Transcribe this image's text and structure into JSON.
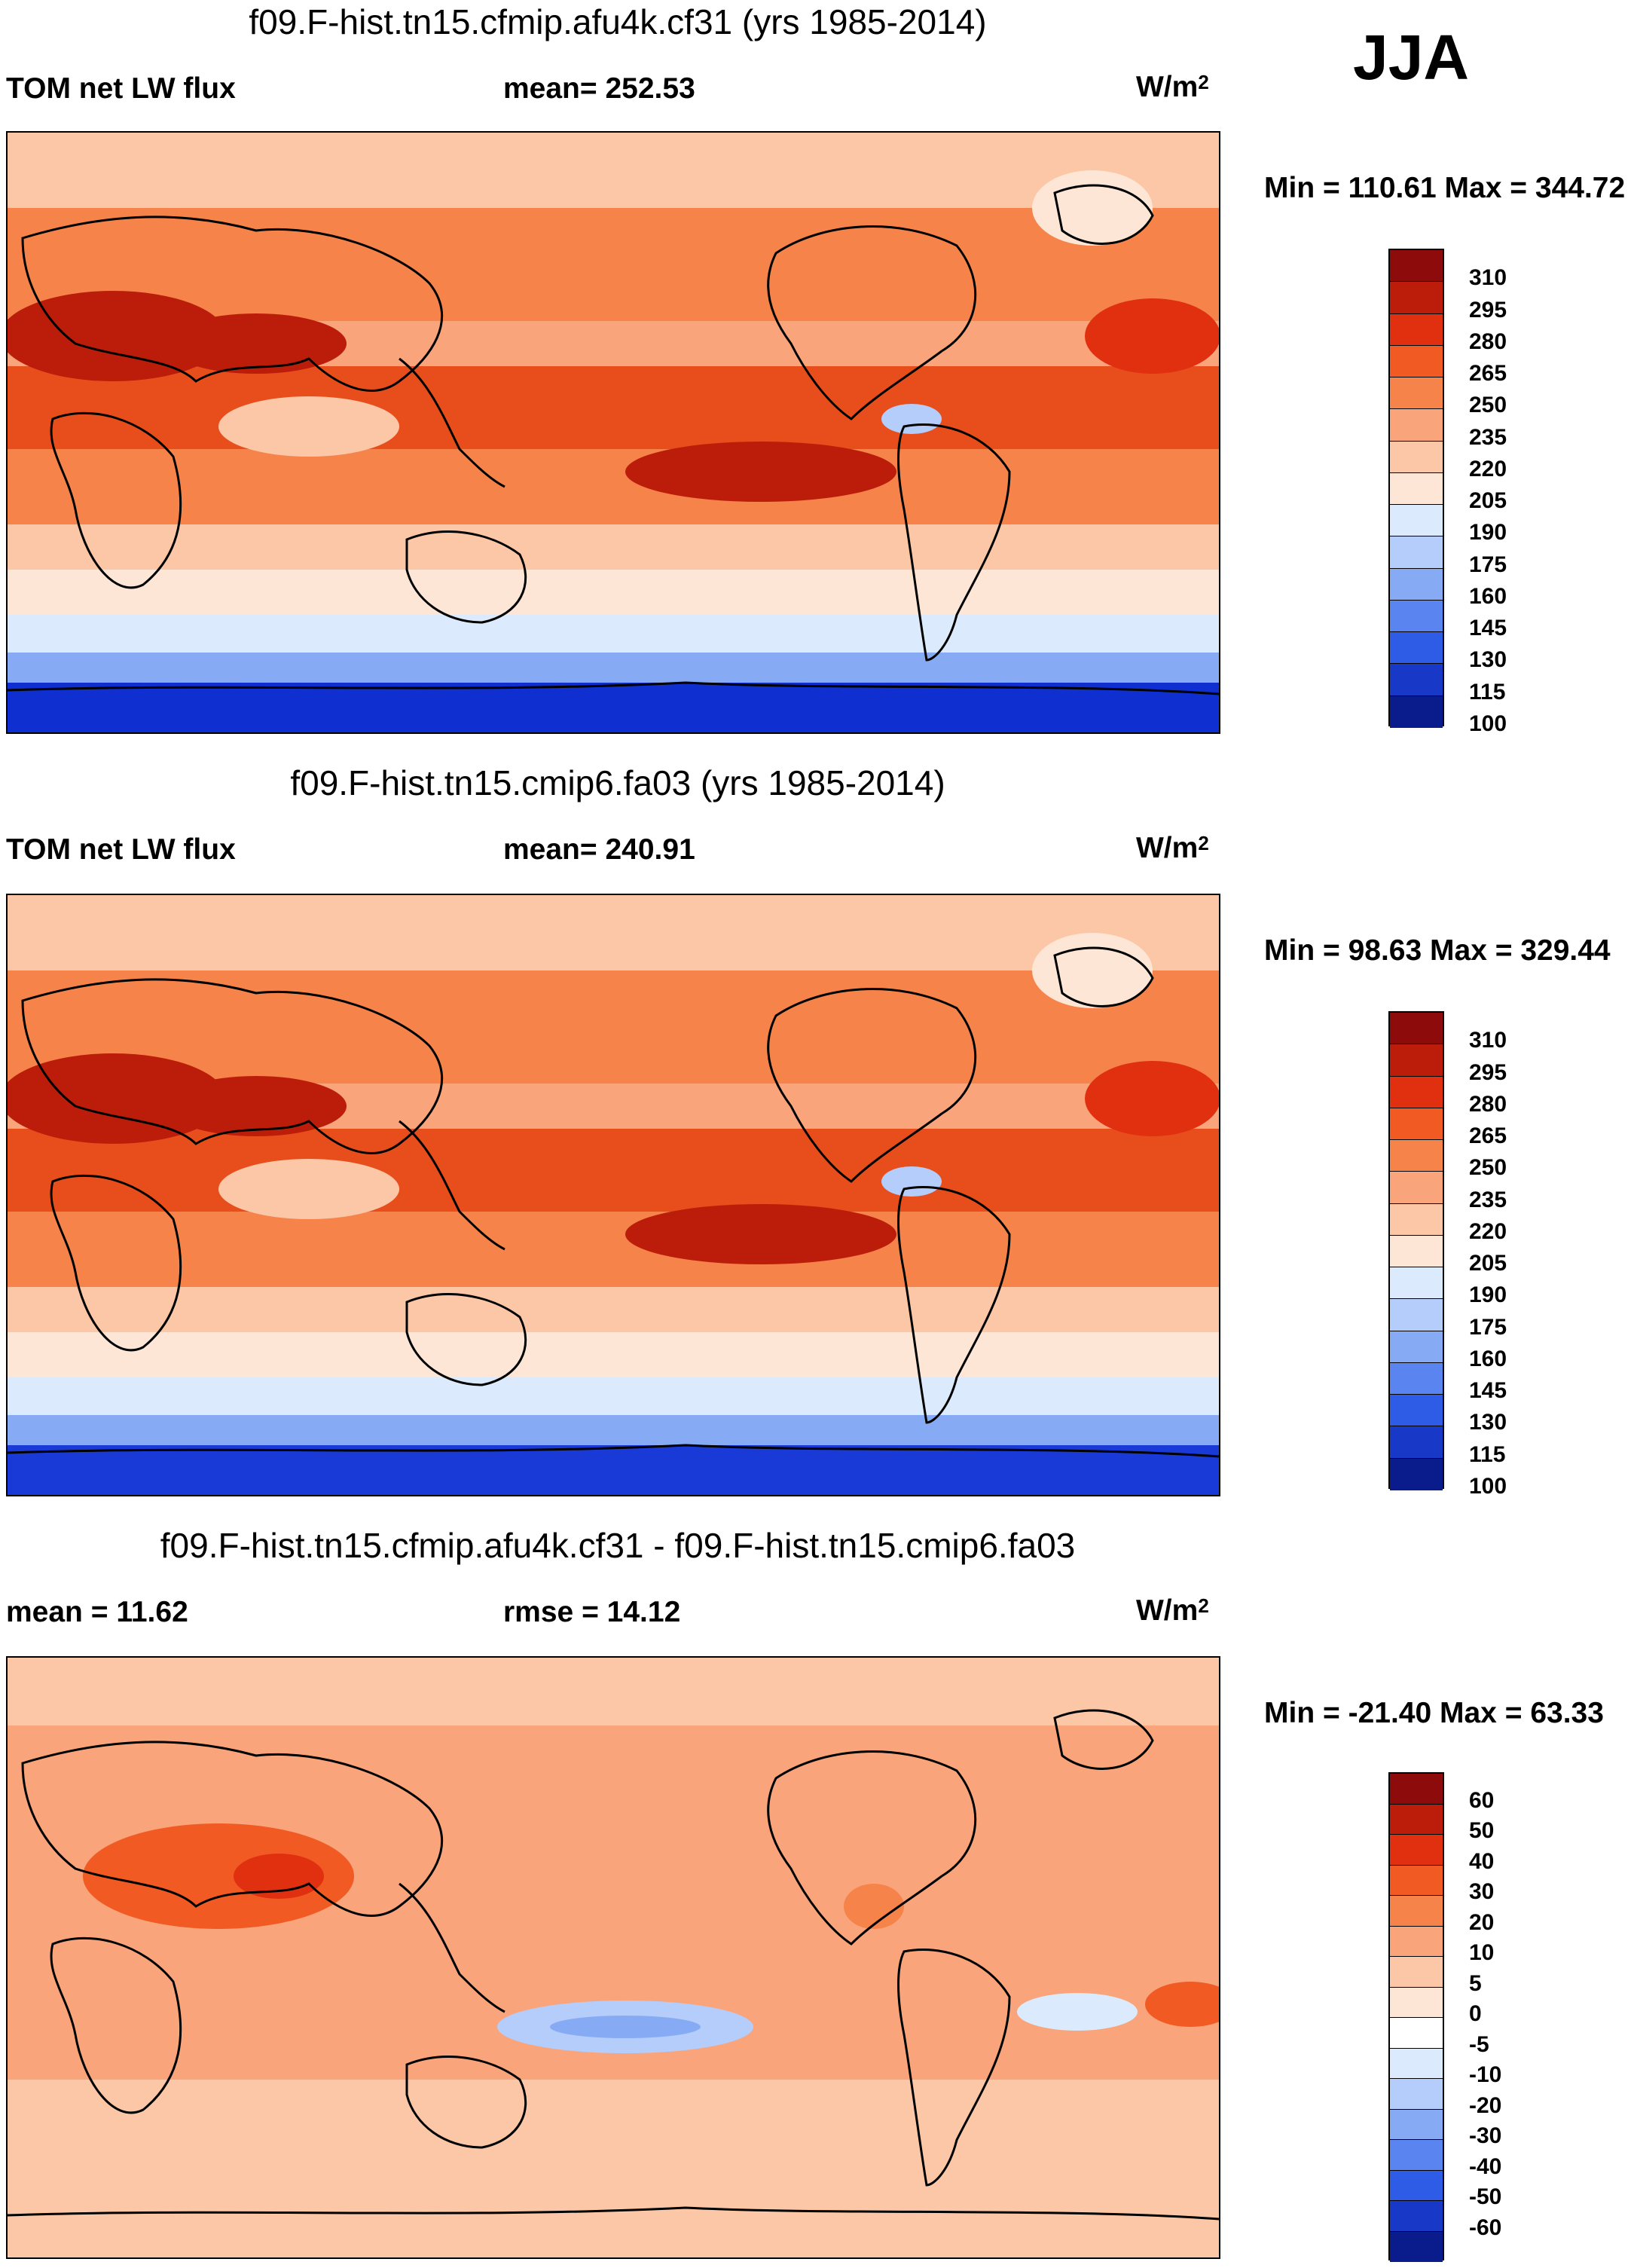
{
  "season": "JJA",
  "units": {
    "base": "W/m",
    "exp": "2"
  },
  "chart_data": [
    {
      "type": "heatmap",
      "title": "f09.F-hist.tn15.cfmip.afu4k.cf31 (yrs 1985-2014)",
      "variable": "TOM net LW flux",
      "stat": "mean= 252.53",
      "min_text": "Min = 110.61 Max = 344.72",
      "min": 110.61,
      "max": 344.72,
      "mean": 252.53,
      "colorbar_levels": [
        "310",
        "295",
        "280",
        "265",
        "250",
        "235",
        "220",
        "205",
        "190",
        "175",
        "160",
        "145",
        "130",
        "115",
        "100"
      ],
      "colorbar_colors": [
        "#8e0b0b",
        "#bb1d0a",
        "#e03010",
        "#f15a22",
        "#f6834a",
        "#f9a47b",
        "#fcc7a6",
        "#fde6d5",
        "#dbeafc",
        "#b4cdfa",
        "#87aaf5",
        "#5a84f0",
        "#2e5ce6",
        "#1838c8",
        "#0a1c8c"
      ]
    },
    {
      "type": "heatmap",
      "title": "f09.F-hist.tn15.cmip6.fa03 (yrs 1985-2014)",
      "variable": "TOM net LW flux",
      "stat": "mean= 240.91",
      "min_text": "Min =  98.63 Max = 329.44",
      "min": 98.63,
      "max": 329.44,
      "mean": 240.91,
      "colorbar_levels": [
        "310",
        "295",
        "280",
        "265",
        "250",
        "235",
        "220",
        "205",
        "190",
        "175",
        "160",
        "145",
        "130",
        "115",
        "100"
      ],
      "colorbar_colors": [
        "#8e0b0b",
        "#bb1d0a",
        "#e03010",
        "#f15a22",
        "#f6834a",
        "#f9a47b",
        "#fcc7a6",
        "#fde6d5",
        "#dbeafc",
        "#b4cdfa",
        "#87aaf5",
        "#5a84f0",
        "#2e5ce6",
        "#1838c8",
        "#0a1c8c"
      ]
    },
    {
      "type": "heatmap",
      "title": "f09.F-hist.tn15.cfmip.afu4k.cf31 - f09.F-hist.tn15.cmip6.fa03",
      "variable": "mean =  11.62",
      "stat": "rmse =  14.12",
      "min_text": "Min = -21.40 Max =  63.33",
      "min": -21.4,
      "max": 63.33,
      "mean": 11.62,
      "rmse": 14.12,
      "colorbar_levels": [
        "60",
        "50",
        "40",
        "30",
        "20",
        "10",
        "5",
        "0",
        "-5",
        "-10",
        "-20",
        "-30",
        "-40",
        "-50",
        "-60"
      ],
      "colorbar_colors": [
        "#8e0b0b",
        "#bb1d0a",
        "#e03010",
        "#f15a22",
        "#f6834a",
        "#f9a47b",
        "#fcc7a6",
        "#fde6d5",
        "#ffffff",
        "#dbeafc",
        "#b4cdfa",
        "#87aaf5",
        "#5a84f0",
        "#2e5ce6",
        "#1838c8",
        "#0a1c8c"
      ]
    }
  ]
}
